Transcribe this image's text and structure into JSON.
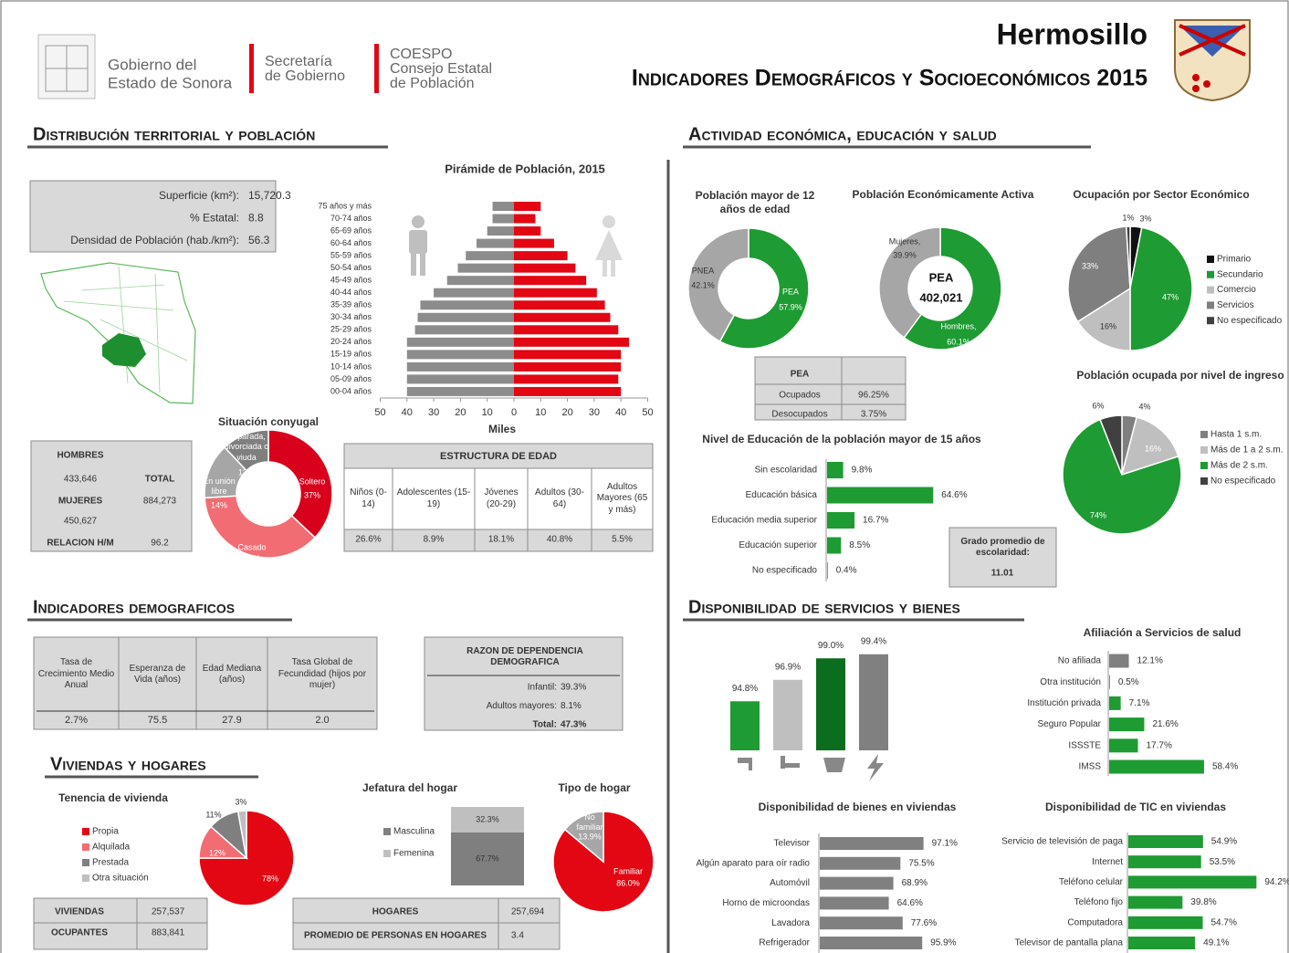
{
  "header": {
    "title": "Hermosillo",
    "subtitle": "Indicadores Demográficos y Socioeconómicos 2015",
    "gobierno": [
      "Gobierno del",
      "Estado de Sonora"
    ],
    "secretaria": [
      "Secretaría",
      "de Gobierno"
    ],
    "coespo": [
      "COESPO",
      "Consejo Estatal",
      "de Población"
    ]
  },
  "sections": {
    "territorial": "Distribución territorial y población",
    "economia": "Actividad económica, educación y salud",
    "demograficos": "Indicadores demograficos",
    "servicios": "Disponibilidad de servicios y bienes",
    "viviendas": "Viviendas y hogares"
  },
  "territorio": {
    "rows": [
      {
        "label": "Superficie (km²):",
        "value": "15,720.3"
      },
      {
        "label": "% Estatal:",
        "value": "8.8"
      },
      {
        "label": "Densidad de Población (hab./km²):",
        "value": "56.3"
      }
    ]
  },
  "piramide": {
    "type": "bar",
    "title": "Pirámide de Población, 2015",
    "xlabel": "Miles",
    "categories": [
      "75 años y más",
      "70-74 años",
      "65-69 años",
      "60-64 años",
      "55-59 años",
      "50-54 años",
      "45-49 años",
      "40-44 años",
      "35-39 años",
      "30-34 años",
      "25-29 años",
      "20-24 años",
      "15-19 años",
      "10-14 años",
      "05-09 años",
      "00-04 años"
    ],
    "series": [
      {
        "color": "#8c8c8c",
        "values": [
          -8,
          -8,
          -10,
          -14,
          -18,
          -21,
          -25,
          -30,
          -35,
          -36,
          -37,
          -40,
          -40,
          -40,
          -40,
          -40
        ]
      },
      {
        "color": "#e30613",
        "values": [
          10,
          8,
          10,
          15,
          20,
          23,
          27,
          31,
          34,
          36,
          39,
          43,
          40,
          40,
          39,
          40
        ]
      }
    ],
    "xlim": [
      -50,
      50
    ],
    "xticks": [
      {
        "value": -50,
        "label": "50"
      },
      {
        "value": -40,
        "label": "40"
      },
      {
        "value": -30,
        "label": "30"
      },
      {
        "value": -20,
        "label": "20"
      },
      {
        "value": -10,
        "label": "10"
      },
      0,
      10,
      20,
      30,
      40,
      50
    ]
  },
  "conyugal": {
    "type": "pie",
    "title": "Situación conyugal",
    "categories": [
      "Soltero",
      "Casado",
      "En unión libre",
      "Separada, divorciada o viuda"
    ],
    "values": [
      37,
      37,
      14,
      12
    ],
    "value_labels": [
      "37%",
      "37%",
      "14%",
      "12%"
    ],
    "colors": [
      "#d9001b",
      "#f26d73",
      "#a6a6a6",
      "#7f7f7f"
    ]
  },
  "poblacion": {
    "hombres": {
      "label": "HOMBRES",
      "value": "433,646"
    },
    "mujeres": {
      "label": "MUJERES",
      "value": "450,627"
    },
    "total": {
      "label": "TOTAL",
      "value": "884,273"
    },
    "relacion": {
      "label": "RELACION H/M",
      "value": "96.2"
    }
  },
  "estructura": {
    "title": "ESTRUCTURA DE EDAD",
    "headers": [
      "Niños (0-14)",
      "Adolescentes (15-19)",
      "Jóvenes (20-29)",
      "Adultos (30-64)",
      "Adultos Mayores (65 y más)"
    ],
    "values": [
      "26.6%",
      "8.9%",
      "18.1%",
      "40.8%",
      "5.5%"
    ]
  },
  "indicadores": {
    "headers": [
      "Tasa de Crecimiento Medio Anual",
      "Esperanza de Vida (años)",
      "Edad Mediana (años)",
      "Tasa Global de Fecundidad (hijos por mujer)"
    ],
    "values": [
      "2.7%",
      "75.5",
      "27.9",
      "2.0"
    ]
  },
  "dependencia": {
    "title": "RAZON DE DEPENDENCIA DEMOGRAFICA",
    "rows": [
      {
        "label": "Infantil:",
        "value": "39.3%"
      },
      {
        "label": "Adultos mayores:",
        "value": "8.1%"
      },
      {
        "label": "Total:",
        "value": "47.3%"
      }
    ]
  },
  "tenencia": {
    "type": "pie",
    "title": "Tenencia de vivienda",
    "categories": [
      "Propia",
      "Alquilada",
      "Prestada",
      "Otra situación"
    ],
    "values": [
      78,
      12,
      11,
      3
    ],
    "value_labels": [
      "78%",
      "12%",
      "11%",
      "3%"
    ],
    "colors": [
      "#e30613",
      "#f26d73",
      "#7f7f7f",
      "#bfbfbf"
    ]
  },
  "jefatura": {
    "type": "bar",
    "title": "Jefatura del hogar",
    "categories": [
      "Masculina",
      "Femenina"
    ],
    "values": [
      67.7,
      32.3
    ],
    "value_labels": [
      "67.7%",
      "32.3%"
    ],
    "colors": [
      "#7f7f7f",
      "#bfbfbf"
    ]
  },
  "tipo_hogar": {
    "type": "pie",
    "title": "Tipo de hogar",
    "categories": [
      "Familiar",
      "No familiar"
    ],
    "values": [
      86.0,
      13.9
    ],
    "value_labels": [
      "86.0%",
      "13.9%"
    ],
    "colors": [
      "#e30613",
      "#a6a6a6"
    ]
  },
  "viviendas": {
    "rows": [
      {
        "label": "VIVIENDAS",
        "value": "257,537"
      },
      {
        "label": "OCUPANTES",
        "value": "883,841"
      }
    ]
  },
  "hogares": {
    "rows": [
      {
        "label": "HOGARES",
        "value": "257,694"
      },
      {
        "label": "PROMEDIO  DE PERSONAS EN HOGARES",
        "value": "3.4"
      }
    ]
  },
  "mayor12": {
    "type": "pie",
    "title": "Población mayor de 12 años de edad",
    "categories": [
      "PEA",
      "PNEA"
    ],
    "values": [
      57.9,
      42.1
    ],
    "value_labels": [
      "57.9%",
      "42.1%"
    ],
    "colors": [
      "#1e9b32",
      "#a6a6a6"
    ]
  },
  "pea": {
    "type": "pie",
    "title": "Población Económicamente Activa",
    "center": [
      "PEA",
      "402,021"
    ],
    "categories": [
      "Hombres,",
      "Mujeres,"
    ],
    "values": [
      60.1,
      39.9
    ],
    "value_labels": [
      "60.1%",
      "39.9%"
    ],
    "colors": [
      "#1e9b32",
      "#a6a6a6"
    ]
  },
  "sector": {
    "type": "pie",
    "title": "Ocupación por Sector Económico",
    "categories": [
      "Primario",
      "Secundario",
      "Comercio",
      "Servicios",
      "No especificado"
    ],
    "values": [
      3,
      47,
      16,
      33,
      1
    ],
    "value_labels": [
      "3%",
      "47%",
      "16%",
      "33%",
      "1%"
    ],
    "colors": [
      "#111111",
      "#1e9b32",
      "#bfbfbf",
      "#7f7f7f",
      "#404040"
    ]
  },
  "pea_tabla": {
    "header": "PEA",
    "rows": [
      {
        "label": "Ocupados",
        "value": "96.25%"
      },
      {
        "label": "Desocupados",
        "value": "3.75%"
      }
    ]
  },
  "ingreso": {
    "type": "pie",
    "title": "Población ocupada por nivel de ingreso",
    "categories": [
      "Hasta 1 s.m.",
      "Más de 1 a 2 s.m.",
      "Más de 2 s.m.",
      "No especificado"
    ],
    "values": [
      4,
      16,
      74,
      6
    ],
    "value_labels": [
      "4%",
      "16%",
      "74%",
      "6%"
    ],
    "colors": [
      "#7f7f7f",
      "#bfbfbf",
      "#1e9b32",
      "#404040"
    ]
  },
  "educacion": {
    "type": "bar",
    "title": "Nivel de Educación de la población mayor de 15 años",
    "categories": [
      "Sin escolaridad",
      "Educación básica",
      "Educación media superior",
      "Educación superior",
      "No especificado"
    ],
    "values": [
      9.8,
      64.6,
      16.7,
      8.5,
      0.4
    ],
    "value_labels": [
      "9.8%",
      "64.6%",
      "16.7%",
      "8.5%",
      "0.4%"
    ],
    "color": "#1e9b32"
  },
  "grado": {
    "label": "Grado promedio de escolaridad:",
    "value": "11.01"
  },
  "servicios": {
    "type": "bar",
    "values": [
      94.8,
      96.9,
      99.0,
      99.4
    ],
    "value_labels": [
      "94.8%",
      "96.9%",
      "99.0%",
      "99.4%"
    ],
    "colors": [
      "#1e9b32",
      "#bfbfbf",
      "#0b6e1f",
      "#808080"
    ],
    "ylim": [
      90,
      100
    ]
  },
  "salud": {
    "type": "bar",
    "title": "Afiliación a Servicios de salud",
    "categories": [
      "No afiliada",
      "Otra institución",
      "Institución privada",
      "Seguro Popular",
      "ISSSTE",
      "IMSS"
    ],
    "values": [
      12.1,
      0.5,
      7.1,
      21.6,
      17.7,
      58.4
    ],
    "value_labels": [
      "12.1%",
      "0.5%",
      "7.1%",
      "21.6%",
      "17.7%",
      "58.4%"
    ],
    "colors": [
      "#808080",
      "#808080",
      "#1e9b32",
      "#1e9b32",
      "#1e9b32",
      "#1e9b32"
    ]
  },
  "bienes": {
    "type": "bar",
    "title": "Disponibilidad de bienes en viviendas",
    "categories": [
      "Televisor",
      "Algún aparato para oír radio",
      "Automóvil",
      "Horno de microondas",
      "Lavadora",
      "Refrigerador"
    ],
    "values": [
      97.1,
      75.5,
      68.9,
      64.6,
      77.6,
      95.9
    ],
    "value_labels": [
      "97.1%",
      "75.5%",
      "68.9%",
      "64.6%",
      "77.6%",
      "95.9%"
    ],
    "color": "#808080"
  },
  "tic": {
    "type": "bar",
    "title": "Disponibilidad de TIC en viviendas",
    "categories": [
      "Servicio de televisión de paga",
      "Internet",
      "Teléfono celular",
      "Teléfono fijo",
      "Computadora",
      "Televisor de pantalla plana"
    ],
    "values": [
      54.9,
      53.5,
      94.2,
      39.8,
      54.7,
      49.1
    ],
    "value_labels": [
      "54.9%",
      "53.5%",
      "94.2%",
      "39.8%",
      "54.7%",
      "49.1%"
    ],
    "color": "#1e9b32"
  }
}
